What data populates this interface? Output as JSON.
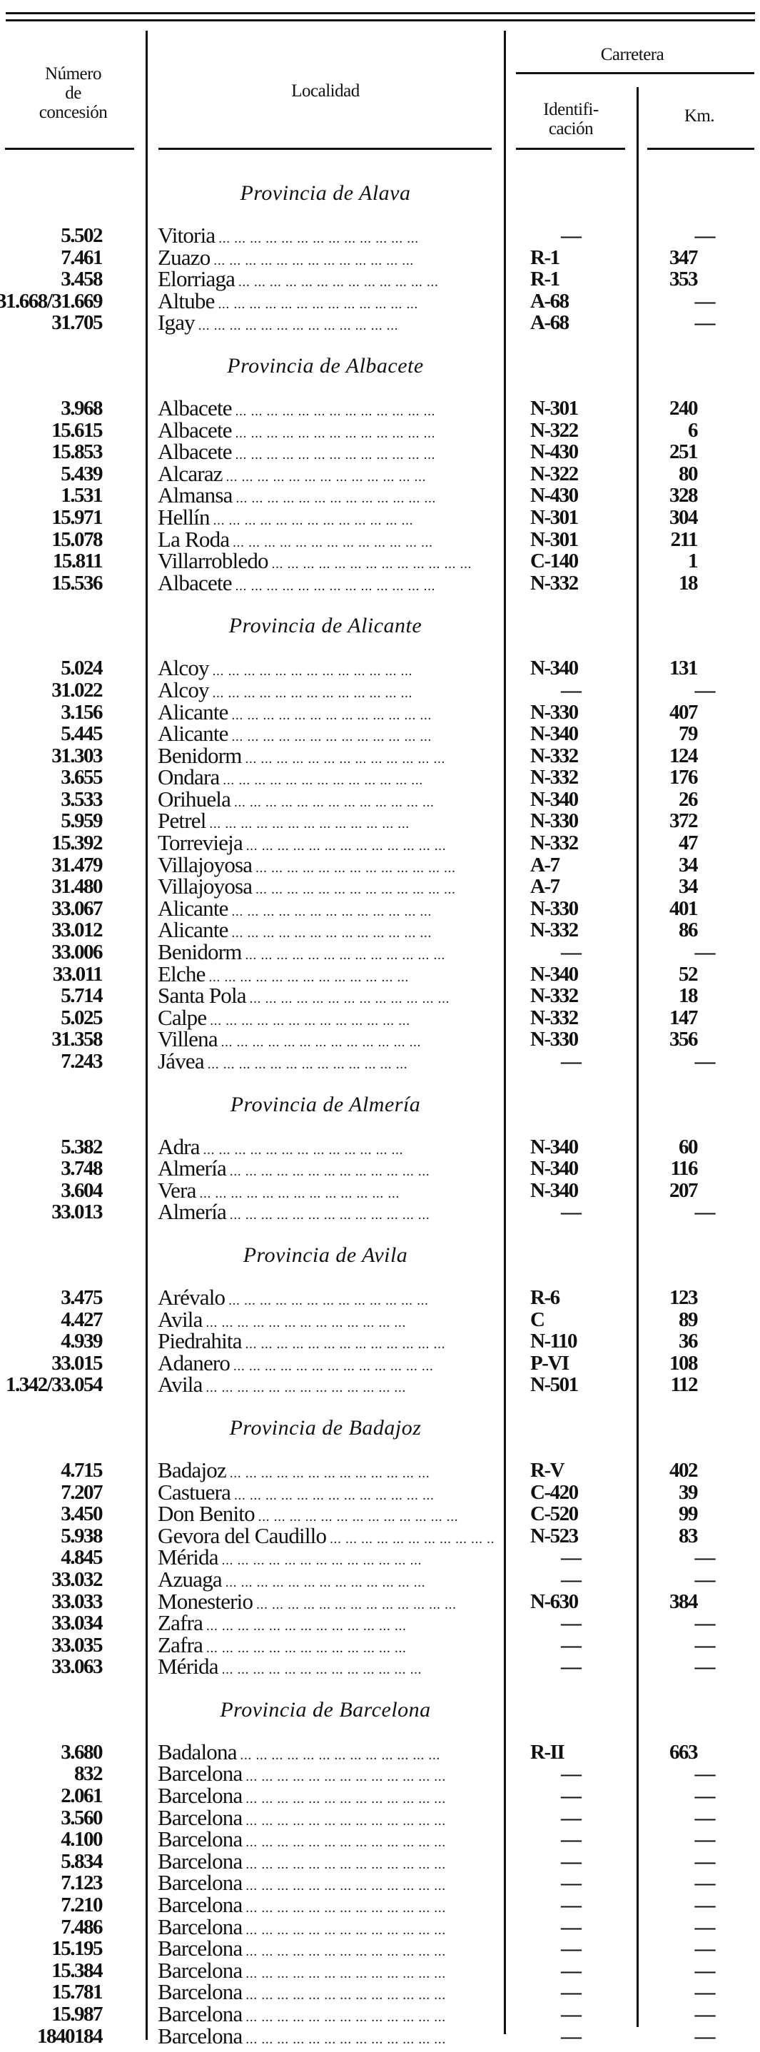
{
  "header": {
    "numero": [
      "Número",
      "de",
      "concesión"
    ],
    "localidad": "Localidad",
    "carretera": "Carretera",
    "identificacion": [
      "Identifi-",
      "cación"
    ],
    "km": "Km."
  },
  "sections": [
    {
      "title": "Provincia de Alava",
      "rows": [
        {
          "num": "5.502",
          "loc": "Vitoria",
          "ident": "—",
          "km": "—"
        },
        {
          "num": "7.461",
          "loc": "Zuazo",
          "ident": "R-1",
          "km": "347"
        },
        {
          "num": "3.458",
          "loc": "Elorriaga",
          "ident": "R-1",
          "km": "353"
        },
        {
          "num": "31.668/31.669",
          "loc": "Altube",
          "ident": "A-68",
          "km": "—"
        },
        {
          "num": "31.705",
          "loc": "Igay",
          "ident": "A-68",
          "km": "—"
        }
      ]
    },
    {
      "title": "Provincia de Albacete",
      "rows": [
        {
          "num": "3.968",
          "loc": "Albacete",
          "ident": "N-301",
          "km": "240"
        },
        {
          "num": "15.615",
          "loc": "Albacete",
          "ident": "N-322",
          "km": "6"
        },
        {
          "num": "15.853",
          "loc": "Albacete",
          "ident": "N-430",
          "km": "251"
        },
        {
          "num": "5.439",
          "loc": "Alcaraz",
          "ident": "N-322",
          "km": "80"
        },
        {
          "num": "1.531",
          "loc": "Almansa",
          "ident": "N-430",
          "km": "328"
        },
        {
          "num": "15.971",
          "loc": "Hellín",
          "ident": "N-301",
          "km": "304"
        },
        {
          "num": "15.078",
          "loc": "La Roda",
          "ident": "N-301",
          "km": "211"
        },
        {
          "num": "15.811",
          "loc": "Villarrobledo",
          "ident": "C-140",
          "km": "1"
        },
        {
          "num": "15.536",
          "loc": "Albacete",
          "ident": "N-332",
          "km": "18"
        }
      ]
    },
    {
      "title": "Provincia de Alicante",
      "rows": [
        {
          "num": "5.024",
          "loc": "Alcoy",
          "ident": "N-340",
          "km": "131"
        },
        {
          "num": "31.022",
          "loc": "Alcoy",
          "ident": "—",
          "km": "—"
        },
        {
          "num": "3.156",
          "loc": "Alicante",
          "ident": "N-330",
          "km": "407"
        },
        {
          "num": "5.445",
          "loc": "Alicante",
          "ident": "N-340",
          "km": "79"
        },
        {
          "num": "31.303",
          "loc": "Benidorm",
          "ident": "N-332",
          "km": "124"
        },
        {
          "num": "3.655",
          "loc": "Ondara",
          "ident": "N-332",
          "km": "176"
        },
        {
          "num": "3.533",
          "loc": "Orihuela",
          "ident": "N-340",
          "km": "26"
        },
        {
          "num": "5.959",
          "loc": "Petrel",
          "ident": "N-330",
          "km": "372"
        },
        {
          "num": "15.392",
          "loc": "Torrevieja",
          "ident": "N-332",
          "km": "47"
        },
        {
          "num": "31.479",
          "loc": "Villajoyosa",
          "ident": "A-7",
          "km": "34"
        },
        {
          "num": "31.480",
          "loc": "Villajoyosa",
          "ident": "A-7",
          "km": "34"
        },
        {
          "num": "33.067",
          "loc": "Alicante",
          "ident": "N-330",
          "km": "401"
        },
        {
          "num": "33.012",
          "loc": "Alicante",
          "ident": "N-332",
          "km": "86"
        },
        {
          "num": "33.006",
          "loc": "Benidorm",
          "ident": "—",
          "km": "—"
        },
        {
          "num": "33.011",
          "loc": "Elche",
          "ident": "N-340",
          "km": "52"
        },
        {
          "num": "5.714",
          "loc": "Santa Pola",
          "ident": "N-332",
          "km": "18"
        },
        {
          "num": "5.025",
          "loc": "Calpe",
          "ident": "N-332",
          "km": "147"
        },
        {
          "num": "31.358",
          "loc": "Villena",
          "ident": "N-330",
          "km": "356"
        },
        {
          "num": "7.243",
          "loc": "Jávea",
          "ident": "—",
          "km": "—"
        }
      ]
    },
    {
      "title": "Provincia de Almería",
      "rows": [
        {
          "num": "5.382",
          "loc": "Adra",
          "ident": "N-340",
          "km": "60"
        },
        {
          "num": "3.748",
          "loc": "Almería",
          "ident": "N-340",
          "km": "116"
        },
        {
          "num": "3.604",
          "loc": "Vera",
          "ident": "N-340",
          "km": "207"
        },
        {
          "num": "33.013",
          "loc": "Almería",
          "ident": "—",
          "km": "—"
        }
      ]
    },
    {
      "title": "Provincia de Avila",
      "rows": [
        {
          "num": "3.475",
          "loc": "Arévalo",
          "ident": "R-6",
          "km": "123"
        },
        {
          "num": "4.427",
          "loc": "Avila",
          "ident": "C",
          "km": "89"
        },
        {
          "num": "4.939",
          "loc": "Piedrahita",
          "ident": "N-110",
          "km": "36"
        },
        {
          "num": "33.015",
          "loc": "Adanero",
          "ident": "P-VI",
          "km": "108"
        },
        {
          "num": "1.342/33.054",
          "loc": "Avila",
          "ident": "N-501",
          "km": "112"
        }
      ]
    },
    {
      "title": "Provincia de Badajoz",
      "rows": [
        {
          "num": "4.715",
          "loc": "Badajoz",
          "ident": "R-V",
          "km": "402"
        },
        {
          "num": "7.207",
          "loc": "Castuera",
          "ident": "C-420",
          "km": "39"
        },
        {
          "num": "3.450",
          "loc": "Don Benito",
          "ident": "C-520",
          "km": "99"
        },
        {
          "num": "5.938",
          "loc": "Gevora del Caudillo",
          "ident": "N-523",
          "km": "83"
        },
        {
          "num": "4.845",
          "loc": "Mérida",
          "ident": "—",
          "km": "—"
        },
        {
          "num": "33.032",
          "loc": "Azuaga",
          "ident": "—",
          "km": "—"
        },
        {
          "num": "33.033",
          "loc": "Monesterio",
          "ident": "N-630",
          "km": "384"
        },
        {
          "num": "33.034",
          "loc": "Zafra",
          "ident": "—",
          "km": "—"
        },
        {
          "num": "33.035",
          "loc": "Zafra",
          "ident": "—",
          "km": "—"
        },
        {
          "num": "33.063",
          "loc": "Mérida",
          "ident": "—",
          "km": "—"
        }
      ]
    },
    {
      "title": "Provincia de Barcelona",
      "rows": [
        {
          "num": "3.680",
          "loc": "Badalona",
          "ident": "R-II",
          "km": "663"
        },
        {
          "num": "832",
          "loc": "Barcelona",
          "ident": "—",
          "km": "—"
        },
        {
          "num": "2.061",
          "loc": "Barcelona",
          "ident": "—",
          "km": "—"
        },
        {
          "num": "3.560",
          "loc": "Barcelona",
          "ident": "—",
          "km": "—"
        },
        {
          "num": "4.100",
          "loc": "Barcelona",
          "ident": "—",
          "km": "—"
        },
        {
          "num": "5.834",
          "loc": "Barcelona",
          "ident": "—",
          "km": "—"
        },
        {
          "num": "7.123",
          "loc": "Barcelona",
          "ident": "—",
          "km": "—"
        },
        {
          "num": "7.210",
          "loc": "Barcelona",
          "ident": "—",
          "km": "—"
        },
        {
          "num": "7.486",
          "loc": "Barcelona",
          "ident": "—",
          "km": "—"
        },
        {
          "num": "15.195",
          "loc": "Barcelona",
          "ident": "—",
          "km": "—"
        },
        {
          "num": "15.384",
          "loc": "Barcelona",
          "ident": "—",
          "km": "—"
        },
        {
          "num": "15.781",
          "loc": "Barcelona",
          "ident": "—",
          "km": "—"
        },
        {
          "num": "15.987",
          "loc": "Barcelona",
          "ident": "—",
          "km": "—"
        },
        {
          "num": "1840184",
          "loc": "Barcelona",
          "ident": "—",
          "km": "—"
        }
      ]
    }
  ]
}
